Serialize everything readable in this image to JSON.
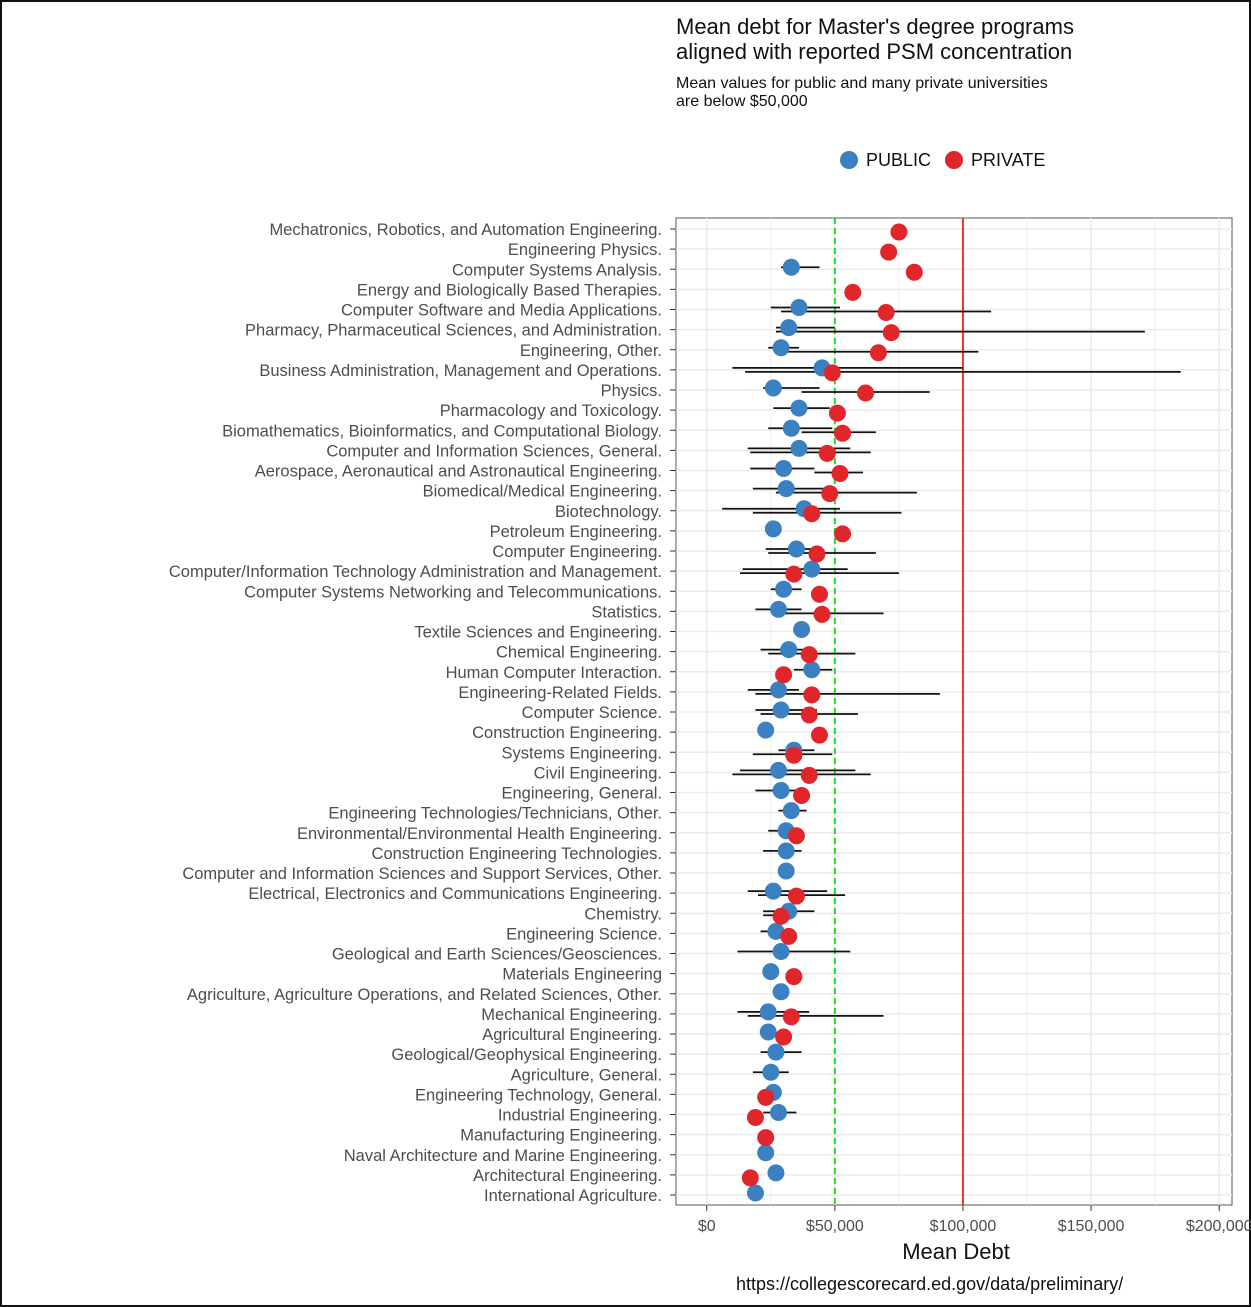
{
  "chart_data": {
    "type": "scatter",
    "title": "Mean debt for Master's degree programs aligned with reported PSM concentration",
    "title_lines": [
      "Mean debt for Master's degree programs",
      "aligned with reported PSM concentration"
    ],
    "subtitle": "Mean values for public and many private universities are below $50,000",
    "subtitle_lines": [
      "Mean values for public and many private universities",
      "are below $50,000"
    ],
    "xlabel": "Mean Debt",
    "ylabel": "",
    "xlim": [
      -12000,
      205000
    ],
    "x_ticks": [
      0,
      50000,
      100000,
      150000,
      200000
    ],
    "x_tick_labels": [
      "$0",
      "$50,000",
      "$100,000",
      "$150,000",
      "$200,000"
    ],
    "reference_lines": [
      {
        "value": 50000,
        "color": "#22dd22",
        "style": "dashed"
      },
      {
        "value": 100000,
        "color": "#e8392f",
        "style": "solid"
      }
    ],
    "grid": true,
    "legend_position": "top",
    "source": "https://collegescorecard.ed.gov/data/preliminary/",
    "series": [
      {
        "name": "PUBLIC",
        "color": "#3b80c0"
      },
      {
        "name": "PRIVATE",
        "color": "#e0252b"
      }
    ],
    "categories": [
      {
        "label": "Mechatronics, Robotics, and Automation Engineering.",
        "public": null,
        "public_err": null,
        "private": 75000,
        "private_err": null
      },
      {
        "label": "Engineering Physics.",
        "public": null,
        "public_err": null,
        "private": 71000,
        "private_err": null
      },
      {
        "label": "Computer Systems Analysis.",
        "public": 33000,
        "public_err": [
          29000,
          44000
        ],
        "private": 81000,
        "private_err": null
      },
      {
        "label": "Energy and Biologically Based Therapies.",
        "public": null,
        "public_err": null,
        "private": 57000,
        "private_err": null
      },
      {
        "label": "Computer Software and Media Applications.",
        "public": 36000,
        "public_err": [
          25000,
          52000
        ],
        "private": 70000,
        "private_err": [
          29000,
          111000
        ]
      },
      {
        "label": "Pharmacy, Pharmaceutical Sciences, and Administration.",
        "public": 32000,
        "public_err": [
          27000,
          50000
        ],
        "private": 72000,
        "private_err": [
          27000,
          171000
        ]
      },
      {
        "label": "Engineering, Other.",
        "public": 29000,
        "public_err": [
          24000,
          36000
        ],
        "private": 67000,
        "private_err": [
          28000,
          106000
        ]
      },
      {
        "label": "Business Administration, Management and Operations.",
        "public": 45000,
        "public_err": [
          10000,
          100000
        ],
        "private": 49000,
        "private_err": [
          15000,
          185000
        ]
      },
      {
        "label": "Physics.",
        "public": 26000,
        "public_err": [
          22000,
          44000
        ],
        "private": 62000,
        "private_err": [
          37000,
          87000
        ]
      },
      {
        "label": "Pharmacology and Toxicology.",
        "public": 36000,
        "public_err": [
          26000,
          48000
        ],
        "private": 51000,
        "private_err": null
      },
      {
        "label": "Biomathematics, Bioinformatics, and Computational Biology.",
        "public": 33000,
        "public_err": [
          24000,
          49000
        ],
        "private": 53000,
        "private_err": [
          37000,
          66000
        ]
      },
      {
        "label": "Computer and Information Sciences, General.",
        "public": 36000,
        "public_err": [
          16000,
          56000
        ],
        "private": 47000,
        "private_err": [
          17000,
          64000
        ]
      },
      {
        "label": "Aerospace, Aeronautical and Astronautical Engineering.",
        "public": 30000,
        "public_err": [
          17000,
          42000
        ],
        "private": 52000,
        "private_err": [
          42000,
          61000
        ]
      },
      {
        "label": "Biomedical/Medical Engineering.",
        "public": 31000,
        "public_err": [
          18000,
          47000
        ],
        "private": 48000,
        "private_err": [
          27000,
          82000
        ]
      },
      {
        "label": "Biotechnology.",
        "public": 38000,
        "public_err": [
          6000,
          52000
        ],
        "private": 41000,
        "private_err": [
          18000,
          76000
        ]
      },
      {
        "label": "Petroleum Engineering.",
        "public": 26000,
        "public_err": null,
        "private": 53000,
        "private_err": null
      },
      {
        "label": "Computer Engineering.",
        "public": 35000,
        "public_err": [
          23000,
          45000
        ],
        "private": 43000,
        "private_err": [
          24000,
          66000
        ]
      },
      {
        "label": "Computer/Information Technology Administration and Management.",
        "public": 41000,
        "public_err": [
          14000,
          55000
        ],
        "private": 34000,
        "private_err": [
          13000,
          75000
        ]
      },
      {
        "label": "Computer Systems Networking and Telecommunications.",
        "public": 30000,
        "public_err": [
          25000,
          37000
        ],
        "private": 44000,
        "private_err": null
      },
      {
        "label": "Statistics.",
        "public": 28000,
        "public_err": [
          19000,
          37000
        ],
        "private": 45000,
        "private_err": [
          26000,
          69000
        ]
      },
      {
        "label": "Textile Sciences and Engineering.",
        "public": 37000,
        "public_err": null,
        "private": null,
        "private_err": null
      },
      {
        "label": "Chemical Engineering.",
        "public": 32000,
        "public_err": [
          21000,
          42000
        ],
        "private": 40000,
        "private_err": [
          24000,
          58000
        ]
      },
      {
        "label": "Human Computer Interaction.",
        "public": 41000,
        "public_err": [
          34000,
          49000
        ],
        "private": 30000,
        "private_err": null
      },
      {
        "label": "Engineering-Related Fields.",
        "public": 28000,
        "public_err": [
          16000,
          36000
        ],
        "private": 41000,
        "private_err": [
          19000,
          91000
        ]
      },
      {
        "label": "Computer Science.",
        "public": 29000,
        "public_err": [
          19000,
          43000
        ],
        "private": 40000,
        "private_err": [
          21000,
          59000
        ]
      },
      {
        "label": "Construction Engineering.",
        "public": 23000,
        "public_err": null,
        "private": 44000,
        "private_err": null
      },
      {
        "label": "Systems Engineering.",
        "public": 34000,
        "public_err": [
          28000,
          42000
        ],
        "private": 34000,
        "private_err": [
          18000,
          49000
        ]
      },
      {
        "label": "Civil Engineering.",
        "public": 28000,
        "public_err": [
          13000,
          58000
        ],
        "private": 40000,
        "private_err": [
          10000,
          64000
        ]
      },
      {
        "label": "Engineering, General.",
        "public": 29000,
        "public_err": [
          19000,
          39000
        ],
        "private": 37000,
        "private_err": null
      },
      {
        "label": "Engineering Technologies/Technicians, Other.",
        "public": 33000,
        "public_err": [
          28000,
          39000
        ],
        "private": null,
        "private_err": null
      },
      {
        "label": "Environmental/Environmental Health Engineering.",
        "public": 31000,
        "public_err": [
          24000,
          36000
        ],
        "private": 35000,
        "private_err": null
      },
      {
        "label": "Construction Engineering Technologies.",
        "public": 31000,
        "public_err": [
          22000,
          37000
        ],
        "private": null,
        "private_err": null
      },
      {
        "label": "Computer and Information Sciences and Support Services, Other.",
        "public": 31000,
        "public_err": null,
        "private": null,
        "private_err": null
      },
      {
        "label": "Electrical, Electronics and Communications Engineering.",
        "public": 26000,
        "public_err": [
          16000,
          47000
        ],
        "private": 35000,
        "private_err": [
          20000,
          54000
        ]
      },
      {
        "label": "Chemistry.",
        "public": 32000,
        "public_err": [
          22000,
          42000
        ],
        "private": 29000,
        "private_err": [
          22000,
          34000
        ]
      },
      {
        "label": "Engineering Science.",
        "public": 27000,
        "public_err": [
          21000,
          33000
        ],
        "private": 32000,
        "private_err": null
      },
      {
        "label": "Geological and Earth Sciences/Geosciences.",
        "public": 29000,
        "public_err": [
          12000,
          56000
        ],
        "private": null,
        "private_err": null
      },
      {
        "label": "Materials Engineering",
        "public": 25000,
        "public_err": null,
        "private": 34000,
        "private_err": null
      },
      {
        "label": "Agriculture, Agriculture Operations, and Related Sciences, Other.",
        "public": 29000,
        "public_err": null,
        "private": null,
        "private_err": null
      },
      {
        "label": "Mechanical Engineering.",
        "public": 24000,
        "public_err": [
          12000,
          40000
        ],
        "private": 33000,
        "private_err": [
          16000,
          69000
        ]
      },
      {
        "label": "Agricultural Engineering.",
        "public": 24000,
        "public_err": null,
        "private": 30000,
        "private_err": null
      },
      {
        "label": "Geological/Geophysical Engineering.",
        "public": 27000,
        "public_err": [
          21000,
          37000
        ],
        "private": null,
        "private_err": null
      },
      {
        "label": "Agriculture, General.",
        "public": 25000,
        "public_err": [
          18000,
          32000
        ],
        "private": null,
        "private_err": null
      },
      {
        "label": "Engineering Technology, General.",
        "public": 26000,
        "public_err": null,
        "private": 23000,
        "private_err": null
      },
      {
        "label": "Industrial Engineering.",
        "public": 28000,
        "public_err": [
          22000,
          35000
        ],
        "private": 19000,
        "private_err": null
      },
      {
        "label": "Manufacturing Engineering.",
        "public": null,
        "public_err": null,
        "private": 23000,
        "private_err": null
      },
      {
        "label": "Naval Architecture and Marine Engineering.",
        "public": 23000,
        "public_err": null,
        "private": null,
        "private_err": null
      },
      {
        "label": "Architectural Engineering.",
        "public": 27000,
        "public_err": null,
        "private": 17000,
        "private_err": null
      },
      {
        "label": "International Agriculture.",
        "public": 19000,
        "public_err": null,
        "private": null,
        "private_err": null
      }
    ]
  }
}
